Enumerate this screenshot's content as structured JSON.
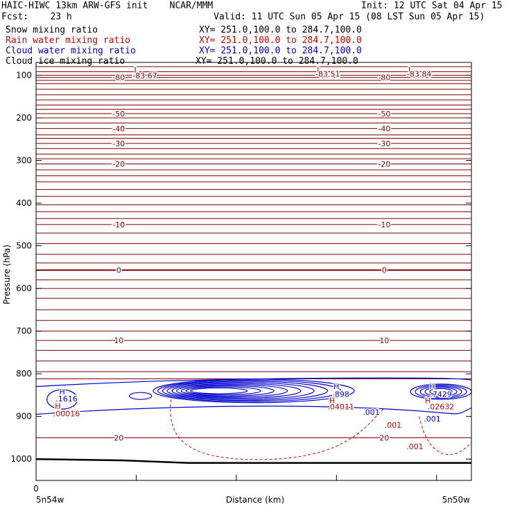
{
  "header": {
    "title": "HAIC-HIWC 13km ARW-GFS init    NCAR/MMM",
    "init": "Init: 12 UTC Sat 04 Apr 15",
    "fcst": "Fcst:    23 h",
    "valid": "Valid: 11 UTC Sun 05 Apr 15 (08 LST Sun 05 Apr 15)"
  },
  "fields": [
    {
      "name": "Snow mixing ratio",
      "xy": "XY= 251.0,100.0 to 284.7,100.0",
      "color": "#000000"
    },
    {
      "name": "Rain water mixing ratio",
      "xy": "XY= 251.0,100.0 to 284.7,100.0",
      "color": "#cc0000"
    },
    {
      "name": "Cloud water mixing ratio",
      "xy": "XY= 251.0,100.0 to 284.7,100.0",
      "color": "#0000cc"
    },
    {
      "name": "Cloud ice mixing ratio",
      "xy": "XY= 251.0,100.0 to 284.7,100.0",
      "color": "#000000"
    }
  ],
  "chart_data": {
    "type": "contour-cross-section",
    "ylabel": "Pressure (hPa)",
    "xlabel": "Distance (km)",
    "ylim": [
      1050,
      70
    ],
    "y_ticks": [
      100,
      200,
      300,
      400,
      500,
      600,
      700,
      800,
      900,
      1000
    ],
    "x_ticks": [
      "0"
    ],
    "x_end_labels": [
      "5n54w",
      "5n50w"
    ],
    "temperature_contours": [
      {
        "p": 105,
        "label": "-80"
      },
      {
        "p": 190,
        "label": "-50"
      },
      {
        "p": 225,
        "label": "-40"
      },
      {
        "p": 260,
        "label": "-30"
      },
      {
        "p": 308,
        "label": "-20"
      },
      {
        "p": 450,
        "label": "-10"
      },
      {
        "p": 557,
        "label": "0"
      },
      {
        "p": 722,
        "label": "10"
      },
      {
        "p": 950,
        "label": "20"
      }
    ],
    "annotations": [
      {
        "text": "L",
        "p": 87,
        "x_frac": 0.23,
        "color": "#7a0000"
      },
      {
        "text": "-83.67",
        "p": 101,
        "x_frac": 0.25,
        "color": "#7a0000"
      },
      {
        "text": "L",
        "p": 87,
        "x_frac": 0.65,
        "color": "#7a0000"
      },
      {
        "text": "-83.51",
        "p": 97,
        "x_frac": 0.67,
        "color": "#7a0000"
      },
      {
        "text": "L",
        "p": 87,
        "x_frac": 0.86,
        "color": "#7a0000"
      },
      {
        "text": "-83.84",
        "p": 97,
        "x_frac": 0.88,
        "color": "#7a0000"
      },
      {
        "text": "H",
        "p": 842,
        "x_frac": 0.06,
        "color": "#0000cc"
      },
      {
        "text": ".1616",
        "p": 858,
        "x_frac": 0.07,
        "color": "#0000cc"
      },
      {
        "text": "H",
        "p": 875,
        "x_frac": 0.05,
        "color": "#cc0000"
      },
      {
        "text": ".00016",
        "p": 893,
        "x_frac": 0.07,
        "color": "#cc0000"
      },
      {
        "text": "H",
        "p": 829,
        "x_frac": 0.69,
        "color": "#0000cc"
      },
      {
        "text": ".898",
        "p": 848,
        "x_frac": 0.7,
        "color": "#0000cc"
      },
      {
        "text": "H",
        "p": 862,
        "x_frac": 0.68,
        "color": "#cc0000"
      },
      {
        "text": ".04011",
        "p": 877,
        "x_frac": 0.7,
        "color": "#cc0000"
      },
      {
        "text": "H",
        "p": 829,
        "x_frac": 0.91,
        "color": "#0000cc"
      },
      {
        "text": ".7429",
        "p": 848,
        "x_frac": 0.93,
        "color": "#0000cc"
      },
      {
        "text": "H",
        "p": 862,
        "x_frac": 0.9,
        "color": "#cc0000"
      },
      {
        "text": ".02632",
        "p": 877,
        "x_frac": 0.93,
        "color": "#cc0000"
      },
      {
        "text": ".001",
        "p": 890,
        "x_frac": 0.77,
        "color": "#0000cc"
      },
      {
        "text": ".001",
        "p": 905,
        "x_frac": 0.91,
        "color": "#0000cc"
      },
      {
        "text": ".001",
        "p": 920,
        "x_frac": 0.82,
        "color": "#cc0000"
      },
      {
        "text": ".001",
        "p": 970,
        "x_frac": 0.87,
        "color": "#cc0000"
      }
    ],
    "colors": {
      "temperature": "#7a0000",
      "cloud_water": "#0000cc",
      "rain": "#cc0000",
      "terrain": "#000000"
    }
  }
}
